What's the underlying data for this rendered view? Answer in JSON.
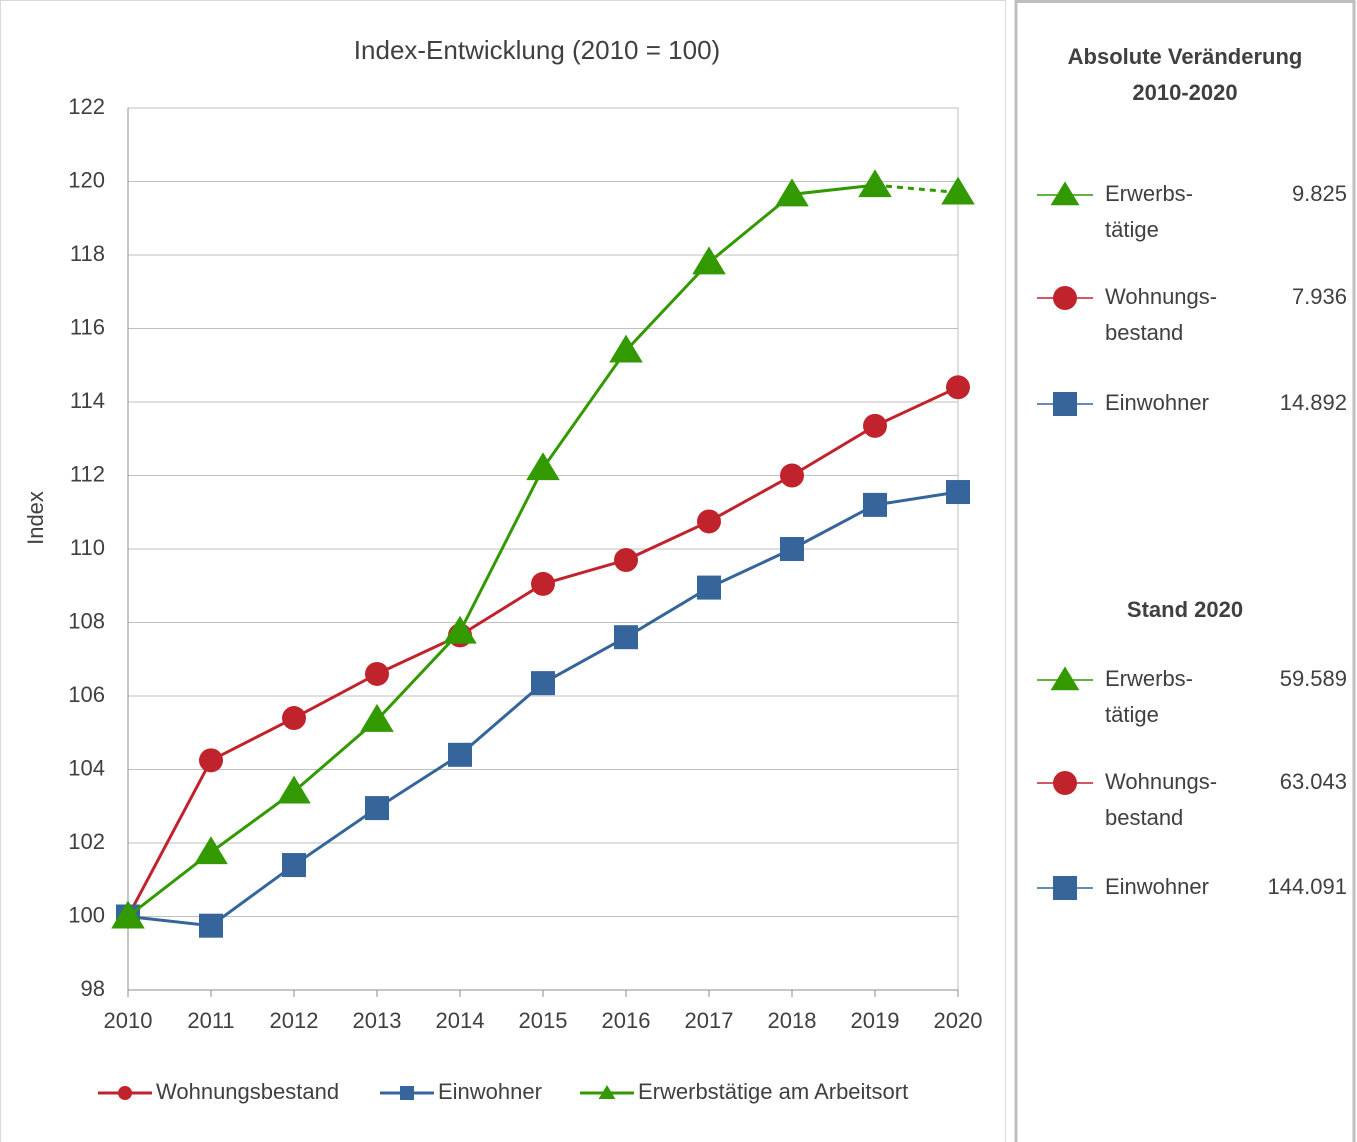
{
  "chart_data": {
    "type": "line",
    "title": "Index-Entwicklung (2010 = 100)",
    "y_label": "Index",
    "x": [
      2010,
      2011,
      2012,
      2013,
      2014,
      2015,
      2016,
      2017,
      2018,
      2019,
      2020
    ],
    "xlim": [
      2010,
      2020
    ],
    "xticks": [
      2010,
      2011,
      2012,
      2013,
      2014,
      2015,
      2016,
      2017,
      2018,
      2019,
      2020
    ],
    "ylim": [
      98,
      122
    ],
    "yticks": [
      98,
      100,
      102,
      104,
      106,
      108,
      110,
      112,
      114,
      116,
      118,
      120,
      122
    ],
    "grid": true,
    "legend": "bottom",
    "series": [
      {
        "name": "Wohnungsbestand",
        "color": "#c0232c",
        "marker": "circle",
        "values": [
          100,
          104.25,
          105.4,
          106.6,
          107.65,
          109.05,
          109.7,
          110.75,
          112.0,
          113.35,
          114.4
        ]
      },
      {
        "name": "Einwohner",
        "color": "#35659b",
        "marker": "square",
        "values": [
          100,
          99.75,
          101.4,
          102.95,
          104.4,
          106.35,
          107.6,
          108.95,
          110.0,
          111.2,
          111.55
        ]
      },
      {
        "name": "Erwerbstätige am Arbeitsort",
        "color": "#339900",
        "marker": "triangle",
        "dashed_last_segment": true,
        "values": [
          100,
          101.75,
          103.4,
          105.35,
          107.75,
          112.2,
          115.4,
          117.8,
          119.65,
          119.9,
          119.7
        ]
      }
    ]
  },
  "panel": {
    "sections": [
      {
        "title": [
          "Absolute Veränderung",
          "2010-2020"
        ],
        "items": [
          {
            "label": [
              "Erwerbs-",
              "tätige"
            ],
            "value": "9.825",
            "color": "#339900",
            "marker": "triangle"
          },
          {
            "label": [
              "Wohnungs-",
              "bestand"
            ],
            "value": "7.936",
            "color": "#c0232c",
            "marker": "circle"
          },
          {
            "label": [
              "Einwohner"
            ],
            "value": "14.892",
            "color": "#35659b",
            "marker": "square"
          }
        ]
      },
      {
        "title": [
          "Stand 2020"
        ],
        "items": [
          {
            "label": [
              "Erwerbs-",
              "tätige"
            ],
            "value": "59.589",
            "color": "#339900",
            "marker": "triangle"
          },
          {
            "label": [
              "Wohnungs-",
              "bestand"
            ],
            "value": "63.043",
            "color": "#c0232c",
            "marker": "circle"
          },
          {
            "label": [
              "Einwohner"
            ],
            "value": "144.091",
            "color": "#35659b",
            "marker": "square"
          }
        ]
      }
    ]
  }
}
